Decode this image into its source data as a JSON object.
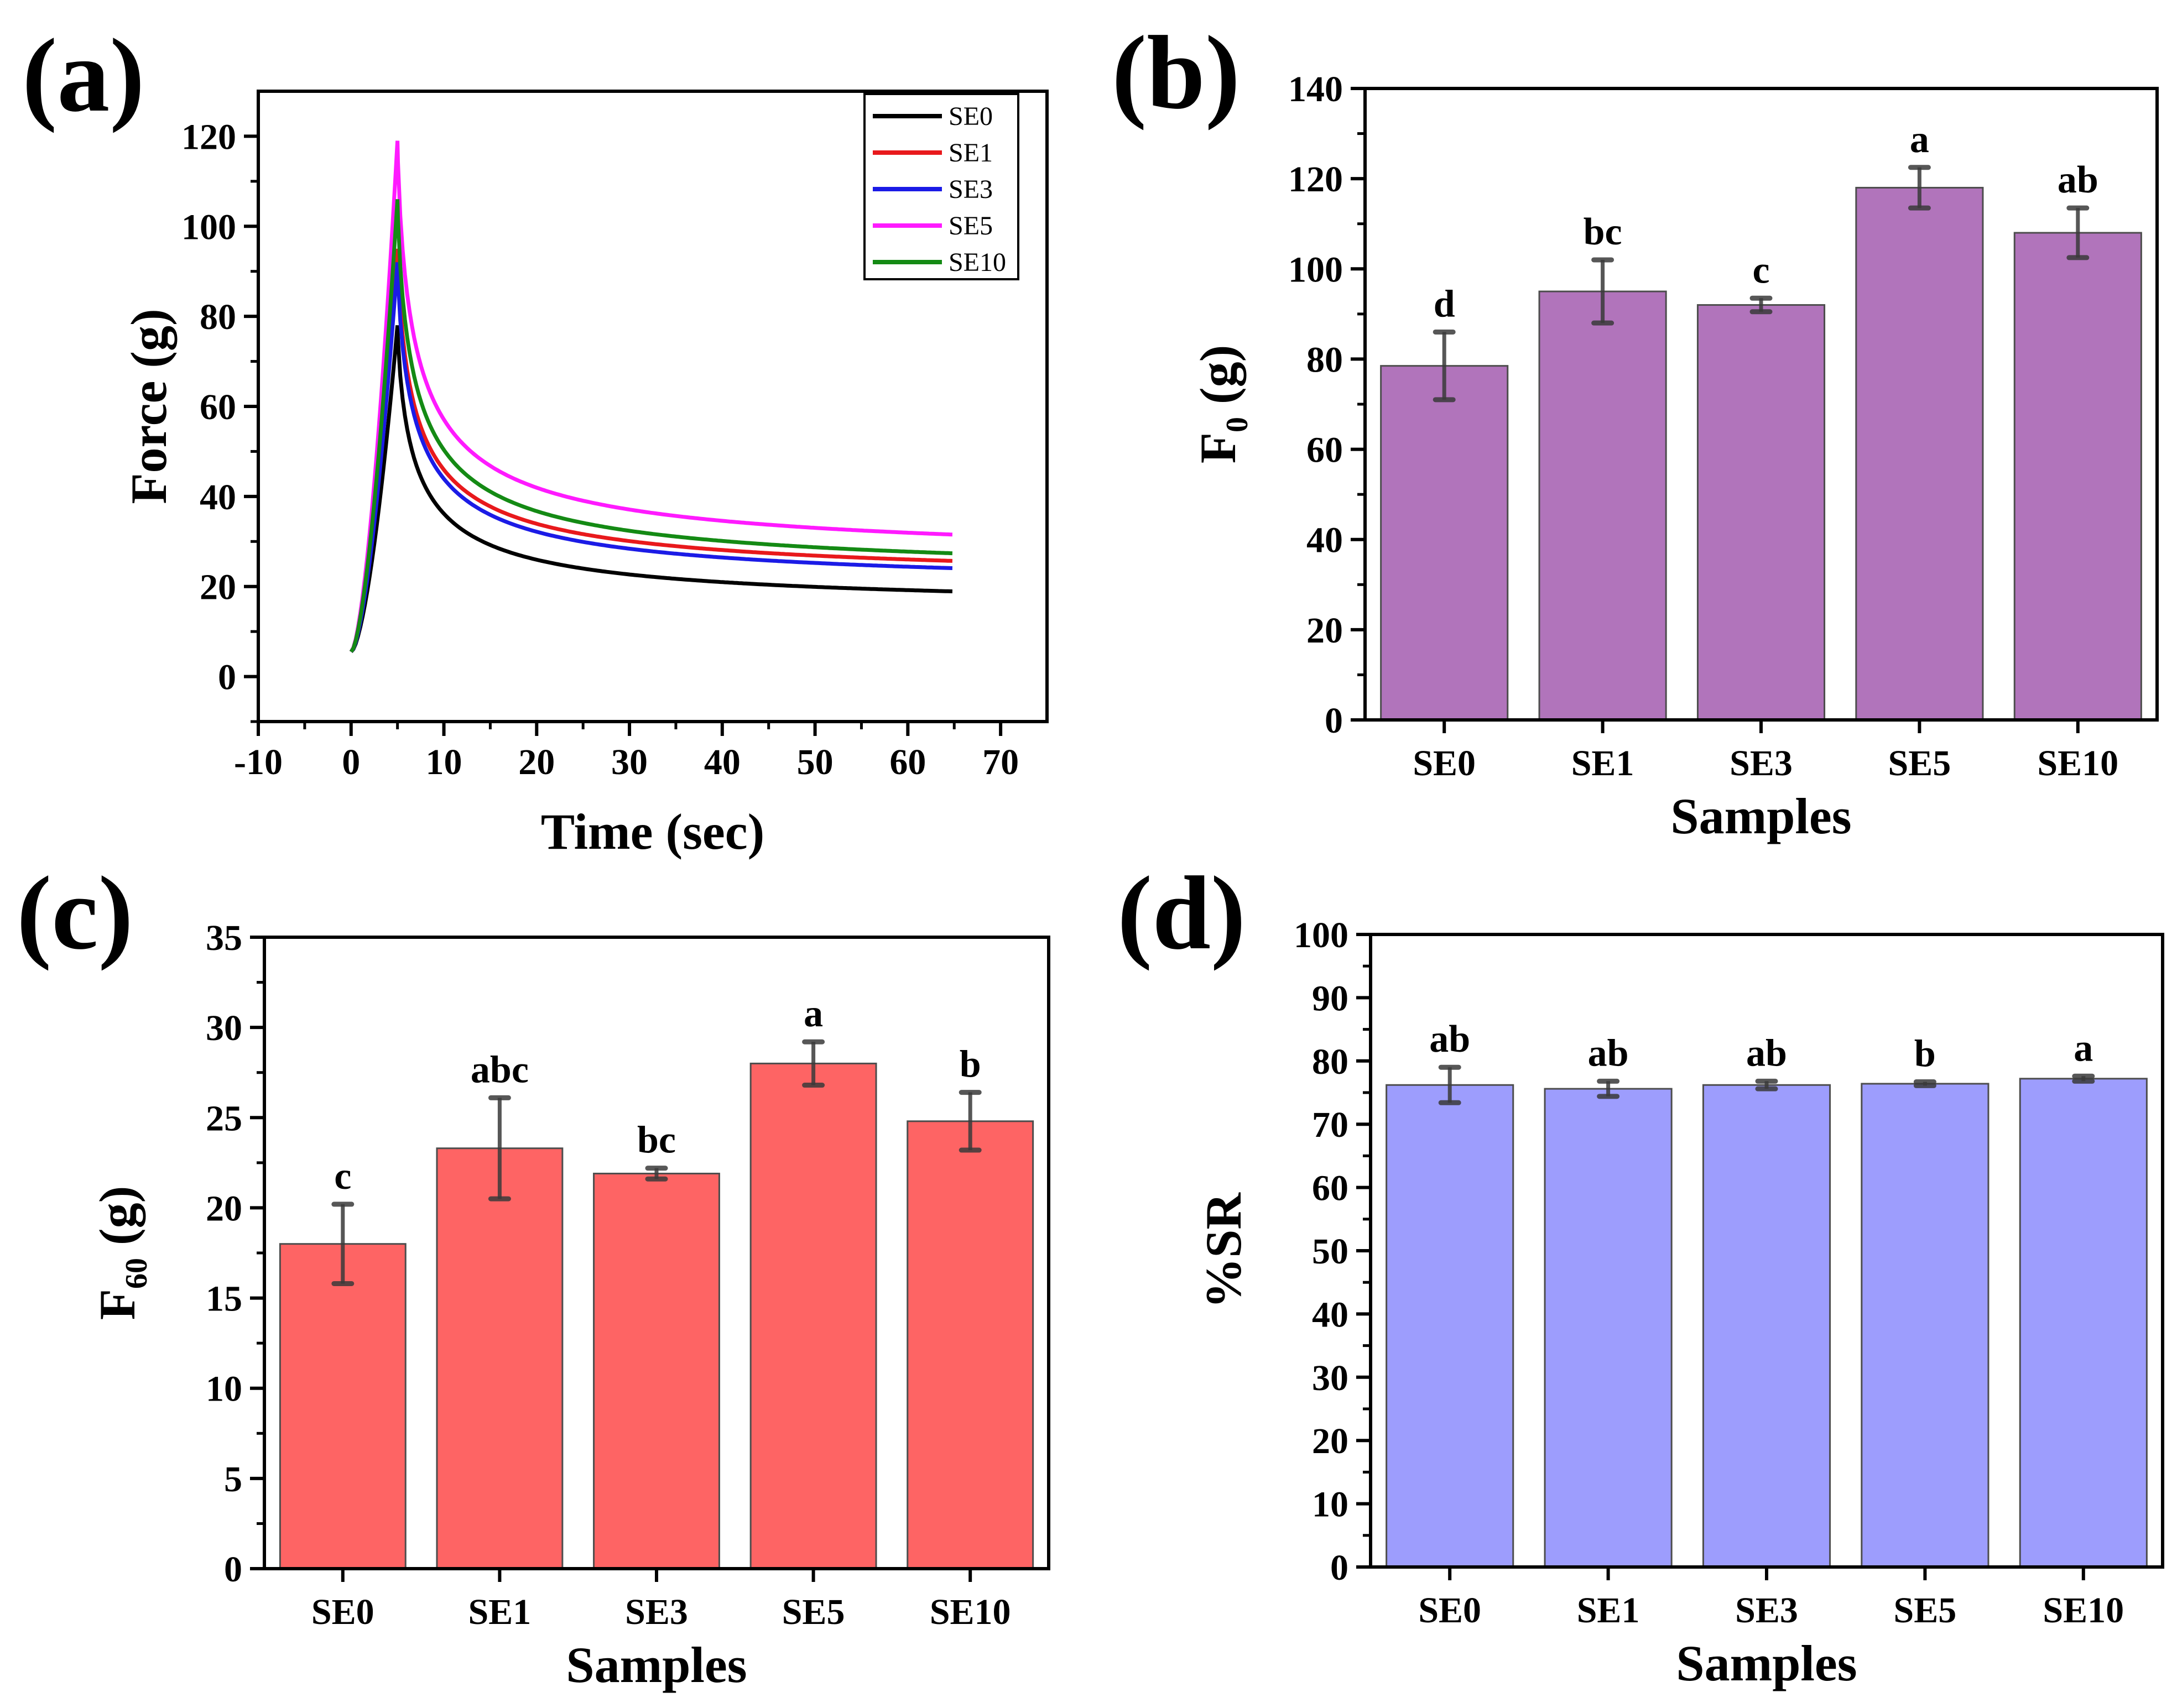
{
  "chart_data": [
    {
      "panel": "(a)",
      "type": "line",
      "xlabel": "Time (sec)",
      "ylabel": "Force (g)",
      "xlim": [
        -10,
        75
      ],
      "ylim": [
        -10,
        130
      ],
      "xticks": [
        -10,
        0,
        10,
        20,
        30,
        40,
        50,
        60,
        70
      ],
      "yticks": [
        0,
        20,
        40,
        60,
        80,
        100,
        120
      ],
      "legend_position": "top-right",
      "series": [
        {
          "name": "SE0",
          "color": "#000000",
          "start": 5.5,
          "peak": 78,
          "peak_time": 5,
          "plateau": 14.5
        },
        {
          "name": "SE1",
          "color": "#e8191c",
          "start": 5.5,
          "peak": 95,
          "peak_time": 5,
          "plateau": 20.5
        },
        {
          "name": "SE3",
          "color": "#1b1be6",
          "start": 5.5,
          "peak": 92,
          "peak_time": 5,
          "plateau": 19
        },
        {
          "name": "SE5",
          "color": "#ff1aff",
          "start": 5.5,
          "peak": 119,
          "peak_time": 5,
          "plateau": 25
        },
        {
          "name": "SE10",
          "color": "#148a14",
          "start": 5.5,
          "peak": 106,
          "peak_time": 5,
          "plateau": 21.5
        }
      ],
      "time_end": 65
    },
    {
      "panel": "(b)",
      "type": "bar",
      "categories": [
        "SE0",
        "SE1",
        "SE3",
        "SE5",
        "SE10"
      ],
      "values": [
        78.5,
        95,
        92,
        118,
        108
      ],
      "errors": [
        7.5,
        7,
        1.5,
        4.5,
        5.5
      ],
      "significance": [
        "d",
        "bc",
        "c",
        "a",
        "ab"
      ],
      "xlabel": "Samples",
      "ylabel_main": "F",
      "ylabel_sub": "0",
      "ylabel_unit": " (g)",
      "ylim": [
        0,
        140
      ],
      "yticks": [
        0,
        20,
        40,
        60,
        80,
        100,
        120,
        140
      ],
      "bar_color": "#b174bb"
    },
    {
      "panel": "(c)",
      "type": "bar",
      "categories": [
        "SE0",
        "SE1",
        "SE3",
        "SE5",
        "SE10"
      ],
      "values": [
        18,
        23.3,
        21.9,
        28,
        24.8
      ],
      "errors": [
        2.2,
        2.8,
        0.3,
        1.2,
        1.6
      ],
      "significance": [
        "c",
        "abc",
        "bc",
        "a",
        "b"
      ],
      "xlabel": "Samples",
      "ylabel_main": "F",
      "ylabel_sub": "60",
      "ylabel_unit": " (g)",
      "ylim": [
        0,
        35
      ],
      "yticks": [
        0,
        5,
        10,
        15,
        20,
        25,
        30,
        35
      ],
      "bar_color": "#fe6464"
    },
    {
      "panel": "(d)",
      "type": "bar",
      "categories": [
        "SE0",
        "SE1",
        "SE3",
        "SE5",
        "SE10"
      ],
      "values": [
        76.2,
        75.6,
        76.2,
        76.4,
        77.2
      ],
      "errors": [
        2.8,
        1.2,
        0.6,
        0.3,
        0.4
      ],
      "significance": [
        "ab",
        "ab",
        "ab",
        "b",
        "a"
      ],
      "xlabel": "Samples",
      "ylabel_main": "%SR",
      "ylabel_sub": "",
      "ylabel_unit": "",
      "ylim": [
        0,
        100
      ],
      "yticks": [
        0,
        10,
        20,
        30,
        40,
        50,
        60,
        70,
        80,
        90,
        100
      ],
      "bar_color": "#9d9dfd"
    }
  ]
}
